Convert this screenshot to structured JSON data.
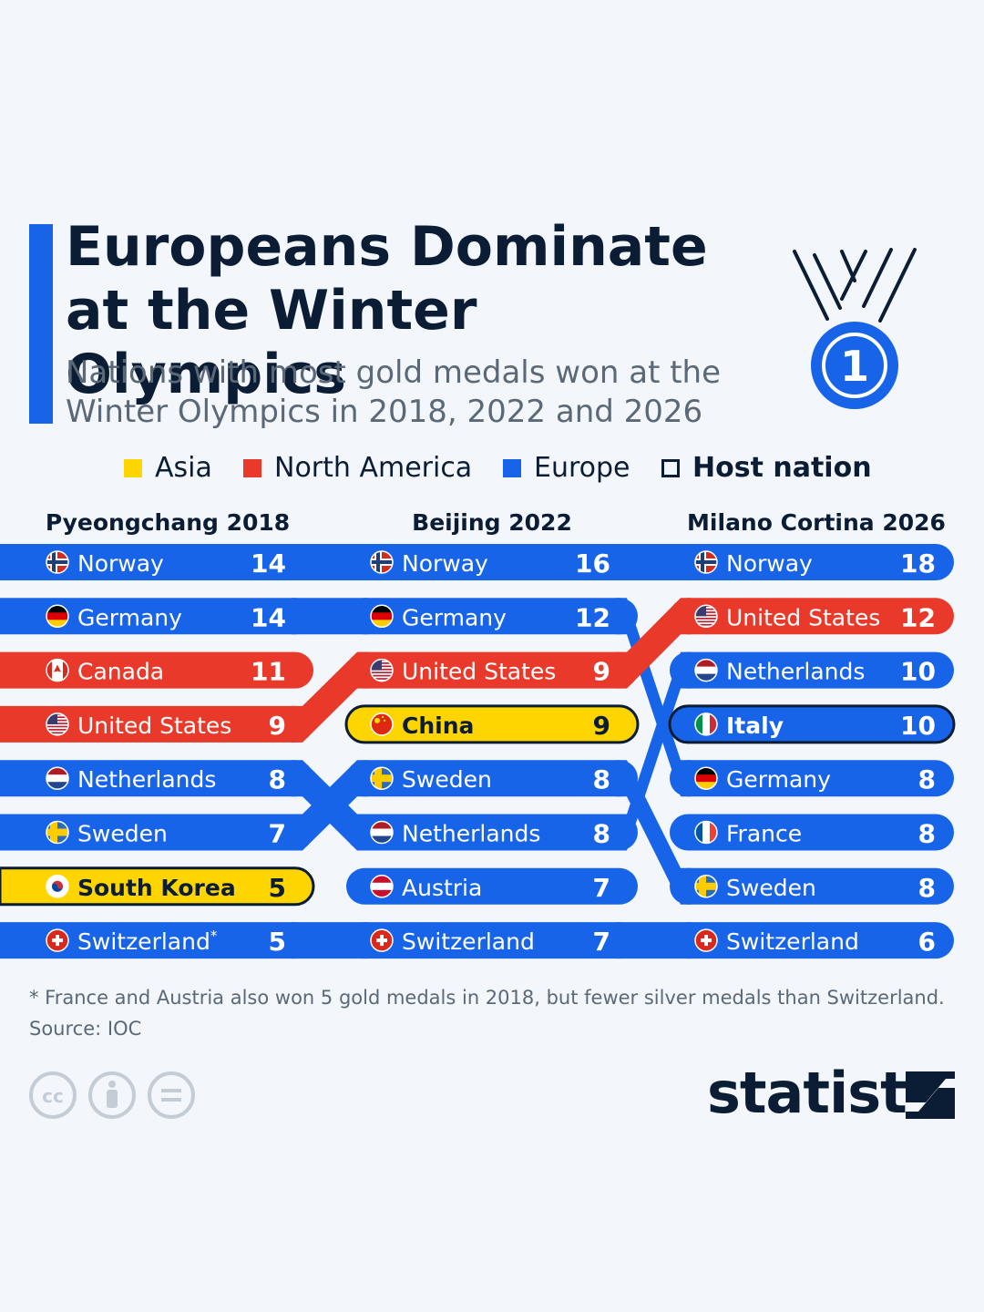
{
  "title": [
    "Europeans Dominate",
    "at the Winter Olympics"
  ],
  "subtitle": [
    "Nations with most gold medals won at the",
    "Winter Olympics in 2018, 2022 and 2026"
  ],
  "medal_icon": "gold-medal-number-one-icon",
  "medal_number": "1",
  "legend": [
    {
      "label": "Asia",
      "color": "#ffd500",
      "bold": false
    },
    {
      "label": "North America",
      "color": "#e8392a",
      "bold": false
    },
    {
      "label": "Europe",
      "color": "#1864e8",
      "bold": false
    },
    {
      "label": "Host nation",
      "color": "none",
      "bold": true
    }
  ],
  "colors": {
    "Asia": "#ffd500",
    "North America": "#e8392a",
    "Europe": "#1864e8",
    "text_dark": "#0b1d34"
  },
  "chart_data": {
    "type": "table",
    "columns": [
      {
        "name": "Pyeongchang 2018",
        "rows": [
          {
            "country": "Norway",
            "gold": 14,
            "region": "Europe",
            "host": false
          },
          {
            "country": "Germany",
            "gold": 14,
            "region": "Europe",
            "host": false
          },
          {
            "country": "Canada",
            "gold": 11,
            "region": "North America",
            "host": false
          },
          {
            "country": "United States",
            "gold": 9,
            "region": "North America",
            "host": false
          },
          {
            "country": "Netherlands",
            "gold": 8,
            "region": "Europe",
            "host": false
          },
          {
            "country": "Sweden",
            "gold": 7,
            "region": "Europe",
            "host": false
          },
          {
            "country": "South Korea",
            "gold": 5,
            "region": "Asia",
            "host": true
          },
          {
            "country": "Switzerland",
            "gold": 5,
            "region": "Europe",
            "host": false,
            "note": "*"
          }
        ]
      },
      {
        "name": "Beijing 2022",
        "rows": [
          {
            "country": "Norway",
            "gold": 16,
            "region": "Europe",
            "host": false
          },
          {
            "country": "Germany",
            "gold": 12,
            "region": "Europe",
            "host": false
          },
          {
            "country": "United States",
            "gold": 9,
            "region": "North America",
            "host": false
          },
          {
            "country": "China",
            "gold": 9,
            "region": "Asia",
            "host": true
          },
          {
            "country": "Sweden",
            "gold": 8,
            "region": "Europe",
            "host": false
          },
          {
            "country": "Netherlands",
            "gold": 8,
            "region": "Europe",
            "host": false
          },
          {
            "country": "Austria",
            "gold": 7,
            "region": "Europe",
            "host": false
          },
          {
            "country": "Switzerland",
            "gold": 7,
            "region": "Europe",
            "host": false
          }
        ]
      },
      {
        "name": "Milano Cortina 2026",
        "rows": [
          {
            "country": "Norway",
            "gold": 18,
            "region": "Europe",
            "host": false
          },
          {
            "country": "United States",
            "gold": 12,
            "region": "North America",
            "host": false
          },
          {
            "country": "Netherlands",
            "gold": 10,
            "region": "Europe",
            "host": false
          },
          {
            "country": "Italy",
            "gold": 10,
            "region": "Europe",
            "host": true
          },
          {
            "country": "Germany",
            "gold": 8,
            "region": "Europe",
            "host": false
          },
          {
            "country": "France",
            "gold": 8,
            "region": "Europe",
            "host": false
          },
          {
            "country": "Sweden",
            "gold": 8,
            "region": "Europe",
            "host": false
          },
          {
            "country": "Switzerland",
            "gold": 6,
            "region": "Europe",
            "host": false
          }
        ]
      }
    ]
  },
  "footnote": "* France and Austria also won 5 gold medals in 2018, but fewer silver medals than Switzerland.",
  "source": "Source: IOC",
  "license_icons": [
    "creative-commons-icon",
    "attribution-icon",
    "no-derivatives-icon"
  ],
  "brand": "statista",
  "brand_icon": "statista-logo-icon"
}
